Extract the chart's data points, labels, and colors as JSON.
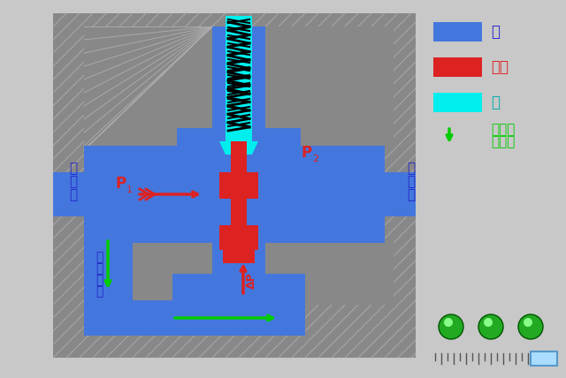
{
  "bg_color": "#c8c8c8",
  "hatch_color": "#888888",
  "oil_color": "#4477dd",
  "piston_color": "#dd2222",
  "valve_color": "#00eeee",
  "arrow_color": "#dd2222",
  "green_arrow_color": "#00cc00",
  "text_color_blue": "#2222cc",
  "text_color_red": "#dd2222",
  "text_color_green": "#00cc00",
  "text_color_cyan": "#00aaaa",
  "title": "",
  "legend_items": [
    {
      "label": "油",
      "color": "#4477dd"
    },
    {
      "label": "活塞",
      "color": "#dd2222"
    },
    {
      "label": "阀",
      "color": "#00eeee"
    },
    {
      "label": "液体流动方向",
      "color": "#00cc00"
    }
  ]
}
